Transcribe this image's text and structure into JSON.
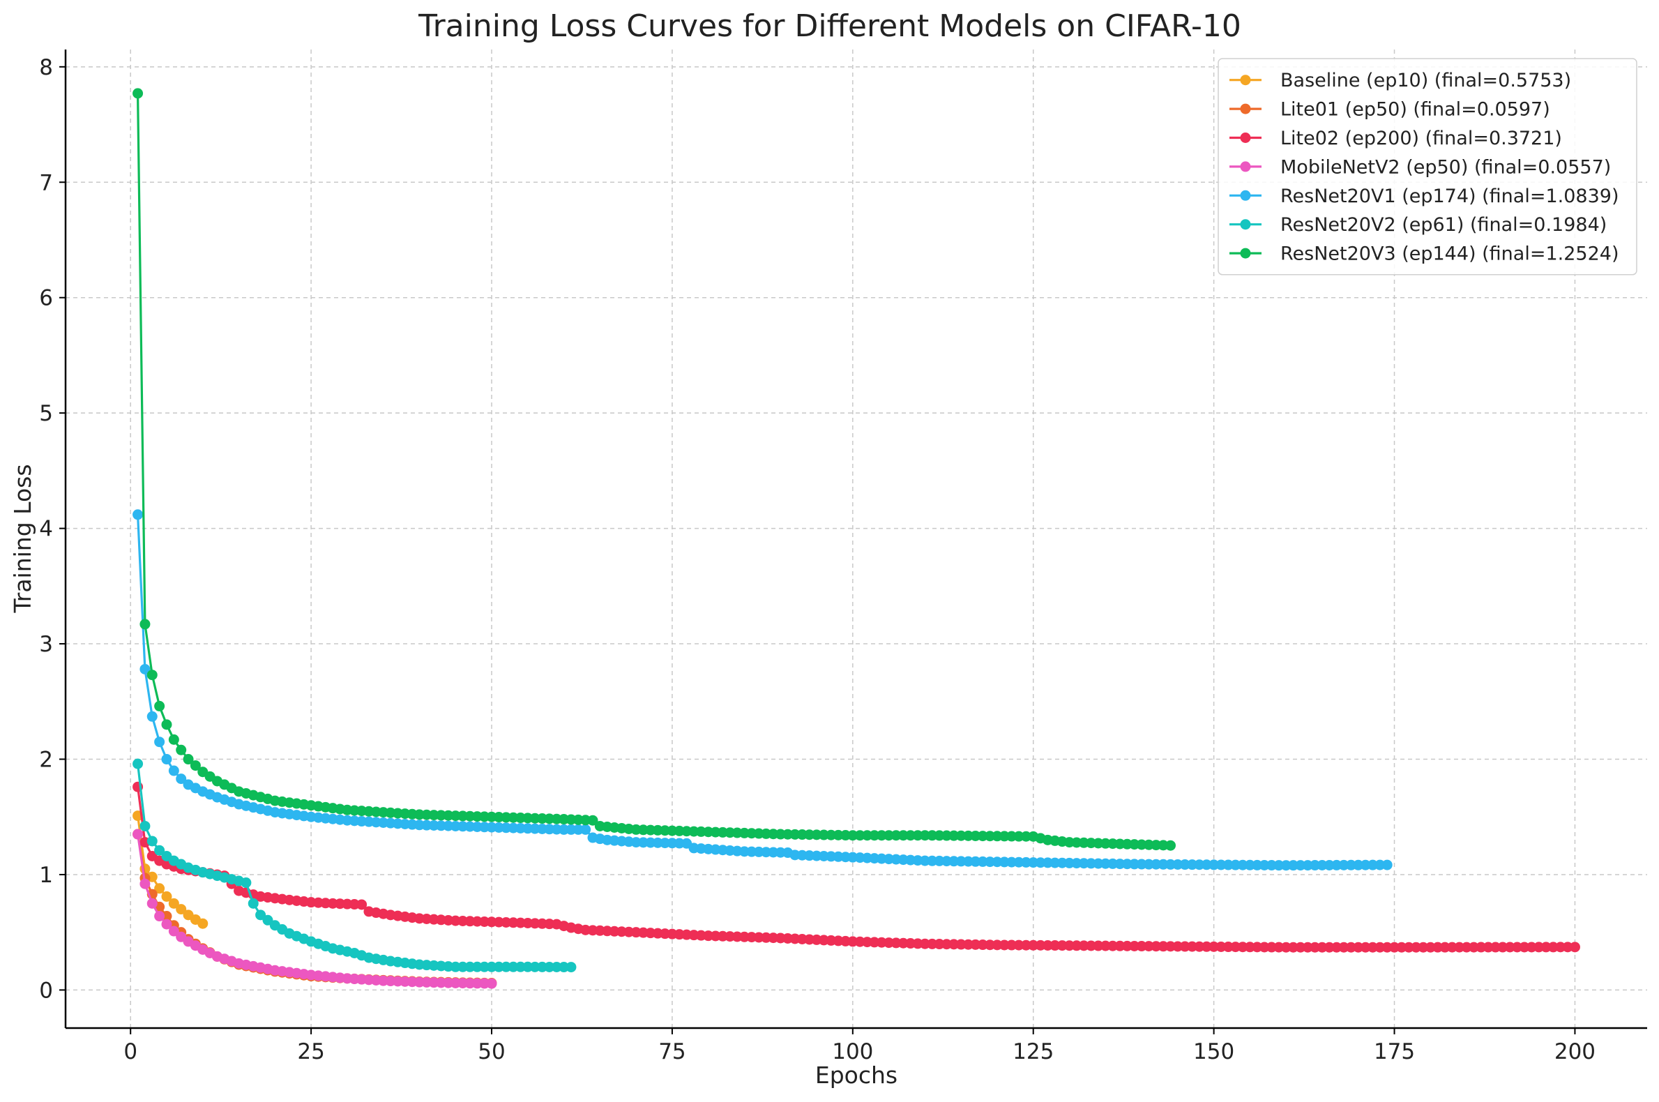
{
  "chart_data": {
    "type": "line",
    "title": "Training Loss Curves for Different Models on CIFAR-10",
    "xlabel": "Epochs",
    "ylabel": "Training Loss",
    "xlim": [
      -9,
      210
    ],
    "ylim": [
      -0.33,
      8.15
    ],
    "xticks": [
      0,
      25,
      50,
      75,
      100,
      125,
      150,
      175,
      200
    ],
    "yticks": [
      0,
      1,
      2,
      3,
      4,
      5,
      6,
      7,
      8
    ],
    "grid": true,
    "legend_position": "top-right",
    "series": [
      {
        "name": "Baseline (ep10) (final=0.5753)",
        "color": "#F5A623",
        "epochs": 10,
        "anchors": [
          [
            1,
            1.51
          ],
          [
            2,
            1.05
          ],
          [
            3,
            0.98
          ],
          [
            4,
            0.88
          ],
          [
            5,
            0.81
          ],
          [
            6,
            0.75
          ],
          [
            7,
            0.7
          ],
          [
            8,
            0.65
          ],
          [
            9,
            0.61
          ],
          [
            10,
            0.5753
          ]
        ]
      },
      {
        "name": "Lite01 (ep50) (final=0.0597)",
        "color": "#EE6A2A",
        "epochs": 50,
        "anchors": [
          [
            1,
            1.35
          ],
          [
            2,
            0.97
          ],
          [
            3,
            0.83
          ],
          [
            4,
            0.72
          ],
          [
            5,
            0.64
          ],
          [
            6,
            0.56
          ],
          [
            7,
            0.5
          ],
          [
            8,
            0.44
          ],
          [
            10,
            0.36
          ],
          [
            12,
            0.29
          ],
          [
            15,
            0.22
          ],
          [
            20,
            0.16
          ],
          [
            25,
            0.12
          ],
          [
            30,
            0.1
          ],
          [
            35,
            0.085
          ],
          [
            40,
            0.072
          ],
          [
            45,
            0.065
          ],
          [
            50,
            0.0597
          ]
        ]
      },
      {
        "name": "Lite02 (ep200) (final=0.3721)",
        "color": "#EE2E55",
        "epochs": 200,
        "anchors": [
          [
            1,
            1.76
          ],
          [
            2,
            1.28
          ],
          [
            3,
            1.16
          ],
          [
            4,
            1.12
          ],
          [
            5,
            1.09
          ],
          [
            7,
            1.05
          ],
          [
            10,
            1.02
          ],
          [
            13,
            0.99
          ],
          [
            14,
            0.92
          ],
          [
            15,
            0.86
          ],
          [
            18,
            0.81
          ],
          [
            22,
            0.78
          ],
          [
            25,
            0.76
          ],
          [
            28,
            0.75
          ],
          [
            32,
            0.74
          ],
          [
            33,
            0.68
          ],
          [
            36,
            0.65
          ],
          [
            40,
            0.62
          ],
          [
            45,
            0.6
          ],
          [
            50,
            0.59
          ],
          [
            55,
            0.58
          ],
          [
            59,
            0.57
          ],
          [
            61,
            0.54
          ],
          [
            63,
            0.52
          ],
          [
            70,
            0.5
          ],
          [
            80,
            0.47
          ],
          [
            90,
            0.45
          ],
          [
            100,
            0.42
          ],
          [
            110,
            0.4
          ],
          [
            120,
            0.39
          ],
          [
            140,
            0.38
          ],
          [
            160,
            0.37
          ],
          [
            180,
            0.37
          ],
          [
            200,
            0.3721
          ]
        ]
      },
      {
        "name": "MobileNetV2 (ep50) (final=0.0557)",
        "color": "#EC57C0",
        "epochs": 50,
        "anchors": [
          [
            1,
            1.35
          ],
          [
            2,
            0.92
          ],
          [
            3,
            0.75
          ],
          [
            4,
            0.64
          ],
          [
            5,
            0.57
          ],
          [
            6,
            0.51
          ],
          [
            7,
            0.46
          ],
          [
            8,
            0.42
          ],
          [
            10,
            0.35
          ],
          [
            12,
            0.29
          ],
          [
            15,
            0.23
          ],
          [
            20,
            0.17
          ],
          [
            25,
            0.13
          ],
          [
            30,
            0.1
          ],
          [
            35,
            0.08
          ],
          [
            40,
            0.068
          ],
          [
            45,
            0.06
          ],
          [
            50,
            0.0557
          ]
        ]
      },
      {
        "name": "ResNet20V1 (ep174) (final=1.0839)",
        "color": "#2DB6F0",
        "epochs": 174,
        "anchors": [
          [
            1,
            4.12
          ],
          [
            2,
            2.78
          ],
          [
            3,
            2.37
          ],
          [
            4,
            2.15
          ],
          [
            5,
            2.0
          ],
          [
            6,
            1.9
          ],
          [
            7,
            1.83
          ],
          [
            8,
            1.78
          ],
          [
            10,
            1.72
          ],
          [
            12,
            1.67
          ],
          [
            15,
            1.61
          ],
          [
            20,
            1.54
          ],
          [
            25,
            1.5
          ],
          [
            30,
            1.47
          ],
          [
            40,
            1.43
          ],
          [
            50,
            1.41
          ],
          [
            60,
            1.39
          ],
          [
            63,
            1.39
          ],
          [
            64,
            1.32
          ],
          [
            66,
            1.3
          ],
          [
            70,
            1.28
          ],
          [
            77,
            1.27
          ],
          [
            78,
            1.23
          ],
          [
            85,
            1.2
          ],
          [
            91,
            1.19
          ],
          [
            92,
            1.17
          ],
          [
            100,
            1.15
          ],
          [
            110,
            1.12
          ],
          [
            120,
            1.11
          ],
          [
            140,
            1.09
          ],
          [
            160,
            1.08
          ],
          [
            174,
            1.0839
          ]
        ]
      },
      {
        "name": "ResNet20V2 (ep61) (final=0.1984)",
        "color": "#16C5C0",
        "epochs": 61,
        "anchors": [
          [
            1,
            1.96
          ],
          [
            2,
            1.42
          ],
          [
            3,
            1.29
          ],
          [
            4,
            1.21
          ],
          [
            5,
            1.16
          ],
          [
            6,
            1.12
          ],
          [
            8,
            1.06
          ],
          [
            10,
            1.02
          ],
          [
            12,
            0.99
          ],
          [
            14,
            0.96
          ],
          [
            16,
            0.93
          ],
          [
            17,
            0.75
          ],
          [
            18,
            0.65
          ],
          [
            20,
            0.56
          ],
          [
            22,
            0.49
          ],
          [
            25,
            0.42
          ],
          [
            28,
            0.36
          ],
          [
            31,
            0.32
          ],
          [
            33,
            0.28
          ],
          [
            36,
            0.25
          ],
          [
            40,
            0.22
          ],
          [
            45,
            0.2
          ],
          [
            50,
            0.2
          ],
          [
            55,
            0.2
          ],
          [
            61,
            0.1984
          ]
        ]
      },
      {
        "name": "ResNet20V3 (ep144) (final=1.2524)",
        "color": "#0DBB57",
        "epochs": 144,
        "anchors": [
          [
            1,
            7.77
          ],
          [
            2,
            3.17
          ],
          [
            3,
            2.73
          ],
          [
            4,
            2.46
          ],
          [
            5,
            2.3
          ],
          [
            6,
            2.17
          ],
          [
            7,
            2.08
          ],
          [
            8,
            2.0
          ],
          [
            10,
            1.89
          ],
          [
            12,
            1.81
          ],
          [
            15,
            1.72
          ],
          [
            20,
            1.64
          ],
          [
            25,
            1.6
          ],
          [
            30,
            1.56
          ],
          [
            40,
            1.52
          ],
          [
            50,
            1.5
          ],
          [
            60,
            1.48
          ],
          [
            64,
            1.47
          ],
          [
            65,
            1.42
          ],
          [
            70,
            1.39
          ],
          [
            80,
            1.37
          ],
          [
            90,
            1.35
          ],
          [
            100,
            1.34
          ],
          [
            110,
            1.34
          ],
          [
            125,
            1.33
          ],
          [
            127,
            1.3
          ],
          [
            130,
            1.28
          ],
          [
            140,
            1.26
          ],
          [
            144,
            1.2524
          ]
        ]
      }
    ]
  }
}
